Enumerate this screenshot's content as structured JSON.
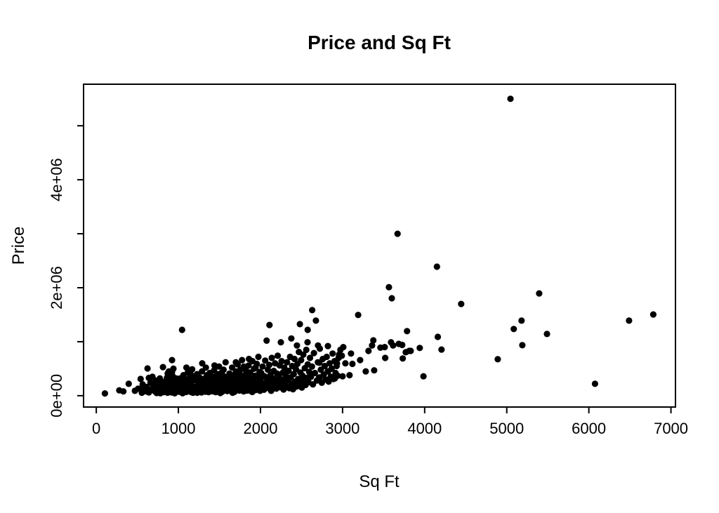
{
  "figure": {
    "title": "Price and Sq Ft",
    "background_color": "#ffffff",
    "point_color": "#000000",
    "axis_color": "#000000"
  },
  "chart_data": {
    "type": "scatter",
    "title": "Price and Sq Ft",
    "xlabel": "Sq Ft",
    "ylabel": "Price",
    "xlim": [
      0,
      7000
    ],
    "ylim": [
      0,
      5500000
    ],
    "grid": false,
    "legend": null,
    "x_ticks": [
      {
        "value": 0,
        "label": "0"
      },
      {
        "value": 1000,
        "label": "1000"
      },
      {
        "value": 2000,
        "label": "2000"
      },
      {
        "value": 3000,
        "label": "3000"
      },
      {
        "value": 4000,
        "label": "4000"
      },
      {
        "value": 5000,
        "label": "5000"
      },
      {
        "value": 6000,
        "label": "6000"
      },
      {
        "value": 7000,
        "label": "7000"
      }
    ],
    "y_ticks": [
      {
        "value": 0,
        "label": "0e+00"
      },
      {
        "value": 1000000,
        "label": ""
      },
      {
        "value": 2000000,
        "label": "2e+06"
      },
      {
        "value": 3000000,
        "label": ""
      },
      {
        "value": 4000000,
        "label": "4e+06"
      },
      {
        "value": 5000000,
        "label": ""
      }
    ],
    "points": [
      [
        105,
        42000
      ],
      [
        280,
        100000
      ],
      [
        330,
        80000
      ],
      [
        395,
        220000
      ],
      [
        470,
        90000
      ],
      [
        510,
        130000
      ],
      [
        540,
        310000
      ],
      [
        555,
        55000
      ],
      [
        565,
        210000
      ],
      [
        580,
        120000
      ],
      [
        607,
        80000
      ],
      [
        615,
        160000
      ],
      [
        624,
        505000
      ],
      [
        640,
        60000
      ],
      [
        640,
        330000
      ],
      [
        650,
        95000
      ],
      [
        660,
        240000
      ],
      [
        672,
        118000
      ],
      [
        684,
        350000
      ],
      [
        695,
        195000
      ],
      [
        700,
        130000
      ],
      [
        710,
        85000
      ],
      [
        718,
        152000
      ],
      [
        725,
        280000
      ],
      [
        735,
        50000
      ],
      [
        745,
        260000
      ],
      [
        750,
        180000
      ],
      [
        758,
        64000
      ],
      [
        760,
        110000
      ],
      [
        775,
        320000
      ],
      [
        780,
        45000
      ],
      [
        790,
        75000
      ],
      [
        798,
        228000
      ],
      [
        800,
        150000
      ],
      [
        808,
        96000
      ],
      [
        812,
        530000
      ],
      [
        815,
        120000
      ],
      [
        820,
        65000
      ],
      [
        830,
        190000
      ],
      [
        838,
        260000
      ],
      [
        845,
        95000
      ],
      [
        852,
        140000
      ],
      [
        860,
        330000
      ],
      [
        868,
        55000
      ],
      [
        870,
        410000
      ],
      [
        875,
        210000
      ],
      [
        882,
        170000
      ],
      [
        884,
        450000
      ],
      [
        890,
        80000
      ],
      [
        897,
        300000
      ],
      [
        905,
        125000
      ],
      [
        906,
        380000
      ],
      [
        912,
        235000
      ],
      [
        918,
        60000
      ],
      [
        923,
        660000
      ],
      [
        923,
        440000
      ],
      [
        925,
        160000
      ],
      [
        932,
        360000
      ],
      [
        938,
        95000
      ],
      [
        940,
        500000
      ],
      [
        945,
        275000
      ],
      [
        952,
        130000
      ],
      [
        955,
        45000
      ],
      [
        958,
        70000
      ],
      [
        965,
        200000
      ],
      [
        972,
        320000
      ],
      [
        978,
        110000
      ],
      [
        985,
        250000
      ],
      [
        992,
        85000
      ],
      [
        998,
        170000
      ],
      [
        1002,
        140000
      ],
      [
        1008,
        75000
      ],
      [
        1015,
        230000
      ],
      [
        1022,
        320000
      ],
      [
        1028,
        95000
      ],
      [
        1035,
        180000
      ],
      [
        1042,
        60000
      ],
      [
        1045,
        1220000
      ],
      [
        1048,
        270000
      ],
      [
        1052,
        45000
      ],
      [
        1055,
        130000
      ],
      [
        1062,
        380000
      ],
      [
        1068,
        90000
      ],
      [
        1075,
        210000
      ],
      [
        1082,
        155000
      ],
      [
        1088,
        300000
      ],
      [
        1095,
        70000
      ],
      [
        1098,
        520000
      ],
      [
        1102,
        250000
      ],
      [
        1108,
        110000
      ],
      [
        1115,
        430000
      ],
      [
        1122,
        180000
      ],
      [
        1128,
        85000
      ],
      [
        1135,
        330000
      ],
      [
        1142,
        140000
      ],
      [
        1145,
        410000
      ],
      [
        1148,
        240000
      ],
      [
        1155,
        65000
      ],
      [
        1162,
        190000
      ],
      [
        1168,
        490000
      ],
      [
        1175,
        120000
      ],
      [
        1178,
        55000
      ],
      [
        1182,
        280000
      ],
      [
        1188,
        95000
      ],
      [
        1195,
        360000
      ],
      [
        1202,
        160000
      ],
      [
        1208,
        90000
      ],
      [
        1215,
        290000
      ],
      [
        1222,
        130000
      ],
      [
        1228,
        400000
      ],
      [
        1230,
        55000
      ],
      [
        1235,
        70000
      ],
      [
        1242,
        220000
      ],
      [
        1248,
        180000
      ],
      [
        1255,
        340000
      ],
      [
        1262,
        100000
      ],
      [
        1268,
        260000
      ],
      [
        1275,
        145000
      ],
      [
        1282,
        60000
      ],
      [
        1288,
        450000
      ],
      [
        1290,
        600000
      ],
      [
        1295,
        200000
      ],
      [
        1302,
        115000
      ],
      [
        1308,
        310000
      ],
      [
        1315,
        85000
      ],
      [
        1322,
        240000
      ],
      [
        1328,
        170000
      ],
      [
        1330,
        75000
      ],
      [
        1335,
        520000
      ],
      [
        1342,
        95000
      ],
      [
        1348,
        380000
      ],
      [
        1355,
        135000
      ],
      [
        1362,
        280000
      ],
      [
        1368,
        65000
      ],
      [
        1370,
        330000
      ],
      [
        1375,
        195000
      ],
      [
        1382,
        420000
      ],
      [
        1388,
        110000
      ],
      [
        1395,
        230000
      ],
      [
        1398,
        160000
      ],
      [
        1402,
        250000
      ],
      [
        1408,
        120000
      ],
      [
        1415,
        350000
      ],
      [
        1422,
        80000
      ],
      [
        1428,
        190000
      ],
      [
        1435,
        470000
      ],
      [
        1440,
        560000
      ],
      [
        1442,
        140000
      ],
      [
        1448,
        290000
      ],
      [
        1455,
        65000
      ],
      [
        1462,
        220000
      ],
      [
        1468,
        380000
      ],
      [
        1475,
        105000
      ],
      [
        1480,
        400000
      ],
      [
        1482,
        260000
      ],
      [
        1488,
        170000
      ],
      [
        1495,
        540000
      ],
      [
        1502,
        95000
      ],
      [
        1508,
        320000
      ],
      [
        1510,
        50000
      ],
      [
        1515,
        200000
      ],
      [
        1522,
        130000
      ],
      [
        1528,
        430000
      ],
      [
        1535,
        75000
      ],
      [
        1542,
        280000
      ],
      [
        1548,
        160000
      ],
      [
        1550,
        480000
      ],
      [
        1555,
        360000
      ],
      [
        1562,
        110000
      ],
      [
        1568,
        240000
      ],
      [
        1575,
        620000
      ],
      [
        1582,
        145000
      ],
      [
        1588,
        310000
      ],
      [
        1590,
        210000
      ],
      [
        1595,
        85000
      ],
      [
        1602,
        180000
      ],
      [
        1608,
        290000
      ],
      [
        1615,
        120000
      ],
      [
        1622,
        410000
      ],
      [
        1628,
        230000
      ],
      [
        1635,
        90000
      ],
      [
        1642,
        340000
      ],
      [
        1648,
        165000
      ],
      [
        1655,
        520000
      ],
      [
        1660,
        55000
      ],
      [
        1662,
        260000
      ],
      [
        1668,
        135000
      ],
      [
        1675,
        380000
      ],
      [
        1682,
        70000
      ],
      [
        1688,
        300000
      ],
      [
        1695,
        195000
      ],
      [
        1700,
        620000
      ],
      [
        1702,
        450000
      ],
      [
        1708,
        110000
      ],
      [
        1715,
        250000
      ],
      [
        1722,
        580000
      ],
      [
        1728,
        155000
      ],
      [
        1735,
        330000
      ],
      [
        1740,
        420000
      ],
      [
        1742,
        95000
      ],
      [
        1748,
        215000
      ],
      [
        1755,
        480000
      ],
      [
        1762,
        140000
      ],
      [
        1768,
        290000
      ],
      [
        1775,
        660000
      ],
      [
        1782,
        185000
      ],
      [
        1788,
        370000
      ],
      [
        1795,
        80000
      ],
      [
        1798,
        540000
      ],
      [
        1802,
        210000
      ],
      [
        1808,
        350000
      ],
      [
        1815,
        130000
      ],
      [
        1822,
        470000
      ],
      [
        1828,
        250000
      ],
      [
        1835,
        95000
      ],
      [
        1842,
        390000
      ],
      [
        1848,
        180000
      ],
      [
        1855,
        560000
      ],
      [
        1860,
        680000
      ],
      [
        1862,
        280000
      ],
      [
        1868,
        150000
      ],
      [
        1875,
        430000
      ],
      [
        1882,
        85000
      ],
      [
        1888,
        320000
      ],
      [
        1895,
        220000
      ],
      [
        1900,
        70000
      ],
      [
        1902,
        640000
      ],
      [
        1908,
        120000
      ],
      [
        1915,
        290000
      ],
      [
        1922,
        500000
      ],
      [
        1928,
        170000
      ],
      [
        1935,
        370000
      ],
      [
        1940,
        520000
      ],
      [
        1942,
        105000
      ],
      [
        1948,
        240000
      ],
      [
        1955,
        590000
      ],
      [
        1962,
        155000
      ],
      [
        1968,
        310000
      ],
      [
        1975,
        720000
      ],
      [
        1980,
        350000
      ],
      [
        1982,
        200000
      ],
      [
        1988,
        440000
      ],
      [
        1995,
        90000
      ],
      [
        1998,
        260000
      ],
      [
        2002,
        280000
      ],
      [
        2010,
        420000
      ],
      [
        2018,
        160000
      ],
      [
        2026,
        540000
      ],
      [
        2034,
        230000
      ],
      [
        2042,
        110000
      ],
      [
        2050,
        360000
      ],
      [
        2058,
        650000
      ],
      [
        2066,
        195000
      ],
      [
        2082,
        300000
      ],
      [
        2090,
        480000
      ],
      [
        2098,
        140000
      ],
      [
        2106,
        570000
      ],
      [
        2114,
        250000
      ],
      [
        2122,
        380000
      ],
      [
        2130,
        90000
      ],
      [
        2138,
        700000
      ],
      [
        2146,
        210000
      ],
      [
        2154,
        320000
      ],
      [
        2162,
        460000
      ],
      [
        2170,
        175000
      ],
      [
        2178,
        600000
      ],
      [
        2186,
        270000
      ],
      [
        2194,
        130000
      ],
      [
        2202,
        410000
      ],
      [
        2210,
        740000
      ],
      [
        2218,
        235000
      ],
      [
        2226,
        350000
      ],
      [
        2234,
        560000
      ],
      [
        2242,
        155000
      ],
      [
        2250,
        300000
      ],
      [
        2258,
        640000
      ],
      [
        2266,
        200000
      ],
      [
        2274,
        430000
      ],
      [
        2282,
        115000
      ],
      [
        2290,
        520000
      ],
      [
        2298,
        280000
      ],
      [
        2306,
        380000
      ],
      [
        2315,
        180000
      ],
      [
        2324,
        620000
      ],
      [
        2333,
        290000
      ],
      [
        2342,
        460000
      ],
      [
        2351,
        140000
      ],
      [
        2360,
        720000
      ],
      [
        2369,
        340000
      ],
      [
        2378,
        220000
      ],
      [
        2387,
        550000
      ],
      [
        2396,
        120000
      ],
      [
        2405,
        400000
      ],
      [
        2414,
        680000
      ],
      [
        2423,
        260000
      ],
      [
        2432,
        490000
      ],
      [
        2441,
        170000
      ],
      [
        2450,
        590000
      ],
      [
        2459,
        310000
      ],
      [
        2468,
        810000
      ],
      [
        2477,
        230000
      ],
      [
        2486,
        430000
      ],
      [
        2495,
        660000
      ],
      [
        2504,
        150000
      ],
      [
        2513,
        370000
      ],
      [
        2522,
        760000
      ],
      [
        2531,
        280000
      ],
      [
        2540,
        510000
      ],
      [
        2549,
        200000
      ],
      [
        2558,
        850000
      ],
      [
        2567,
        330000
      ],
      [
        2576,
        580000
      ],
      [
        2585,
        250000
      ],
      [
        2594,
        440000
      ],
      [
        2603,
        700000
      ],
      [
        2615,
        350000
      ],
      [
        2627,
        540000
      ],
      [
        2639,
        210000
      ],
      [
        2651,
        790000
      ],
      [
        2663,
        420000
      ],
      [
        2687,
        280000
      ],
      [
        2699,
        620000
      ],
      [
        2711,
        330000
      ],
      [
        2723,
        870000
      ],
      [
        2735,
        480000
      ],
      [
        2747,
        240000
      ],
      [
        2759,
        680000
      ],
      [
        2771,
        390000
      ],
      [
        2783,
        550000
      ],
      [
        2795,
        300000
      ],
      [
        2807,
        720000
      ],
      [
        2819,
        450000
      ],
      [
        2831,
        260000
      ],
      [
        2843,
        600000
      ],
      [
        2855,
        350000
      ],
      [
        2867,
        500000
      ],
      [
        2879,
        780000
      ],
      [
        2891,
        310000
      ],
      [
        2903,
        640000
      ],
      [
        2915,
        420000
      ],
      [
        2927,
        550000
      ],
      [
        2939,
        370000
      ],
      [
        2951,
        700000
      ],
      [
        2075,
        1020000
      ],
      [
        2110,
        1310000
      ],
      [
        2248,
        990000
      ],
      [
        2376,
        1060000
      ],
      [
        2444,
        930000
      ],
      [
        2480,
        1325000
      ],
      [
        2573,
        990000
      ],
      [
        2575,
        1220000
      ],
      [
        2630,
        1585000
      ],
      [
        2675,
        1390000
      ],
      [
        2701,
        930000
      ],
      [
        2718,
        610000
      ],
      [
        2721,
        340000
      ],
      [
        2821,
        920000
      ],
      [
        2824,
        450000
      ],
      [
        2906,
        320000
      ],
      [
        2932,
        600000
      ],
      [
        2974,
        850000
      ],
      [
        2991,
        740000
      ],
      [
        2957,
        760000
      ],
      [
        3000,
        360000
      ],
      [
        3009,
        900000
      ],
      [
        3034,
        600000
      ],
      [
        3085,
        380000
      ],
      [
        3103,
        780000
      ],
      [
        3120,
        590000
      ],
      [
        3190,
        1495000
      ],
      [
        3214,
        660000
      ],
      [
        3282,
        450000
      ],
      [
        3316,
        830000
      ],
      [
        3359,
        930000
      ],
      [
        3375,
        1025000
      ],
      [
        3385,
        470000
      ],
      [
        3461,
        890000
      ],
      [
        3513,
        900000
      ],
      [
        3519,
        700000
      ],
      [
        3565,
        2010000
      ],
      [
        3590,
        990000
      ],
      [
        3600,
        1805000
      ],
      [
        3615,
        930000
      ],
      [
        3670,
        3000000
      ],
      [
        3684,
        960000
      ],
      [
        3726,
        940000
      ],
      [
        3733,
        690000
      ],
      [
        3770,
        805000
      ],
      [
        3785,
        1195000
      ],
      [
        3812,
        830000
      ],
      [
        3830,
        830000
      ],
      [
        3940,
        885000
      ],
      [
        3985,
        360000
      ],
      [
        4150,
        2390000
      ],
      [
        4160,
        1090000
      ],
      [
        4205,
        855000
      ],
      [
        4445,
        1700000
      ],
      [
        4890,
        675000
      ],
      [
        5045,
        5500000
      ],
      [
        5085,
        1235000
      ],
      [
        5180,
        1390000
      ],
      [
        5190,
        935000
      ],
      [
        5395,
        1895000
      ],
      [
        5490,
        1143000
      ],
      [
        6075,
        220000
      ],
      [
        6490,
        1390000
      ],
      [
        6785,
        1505000
      ]
    ]
  }
}
